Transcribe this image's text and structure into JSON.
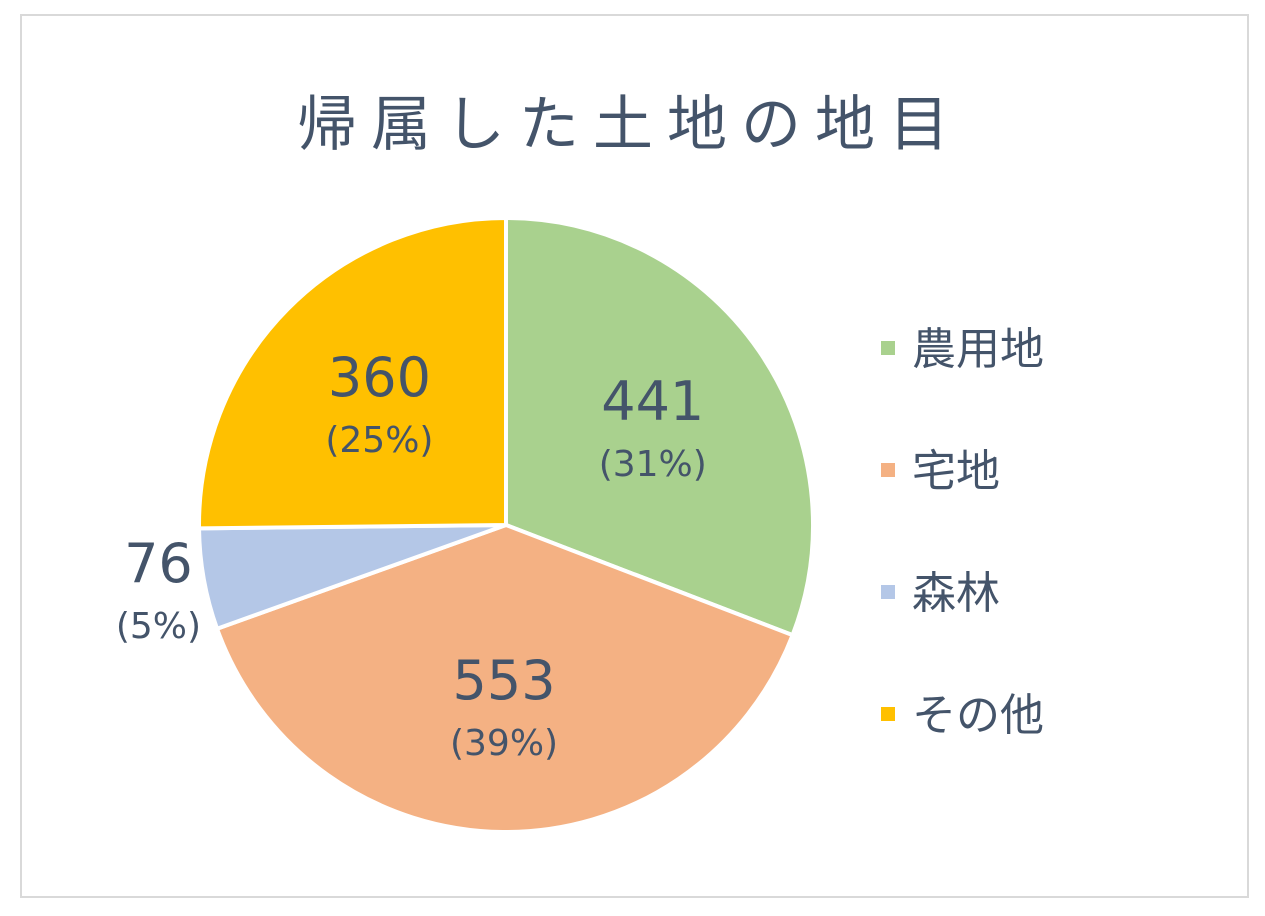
{
  "chart_data": {
    "type": "pie",
    "title": "帰属した土地の地目",
    "categories": [
      "農用地",
      "宅地",
      "森林",
      "その他"
    ],
    "values": [
      441,
      553,
      76,
      360
    ],
    "percent_labels": [
      "(31%)",
      "(39%)",
      "(5%)",
      "(25%)"
    ],
    "colors": [
      "#a9d18e",
      "#f4b183",
      "#b4c7e7",
      "#ffc000"
    ],
    "start_angle_deg": 0,
    "direction": "clockwise",
    "legend_position": "right"
  }
}
